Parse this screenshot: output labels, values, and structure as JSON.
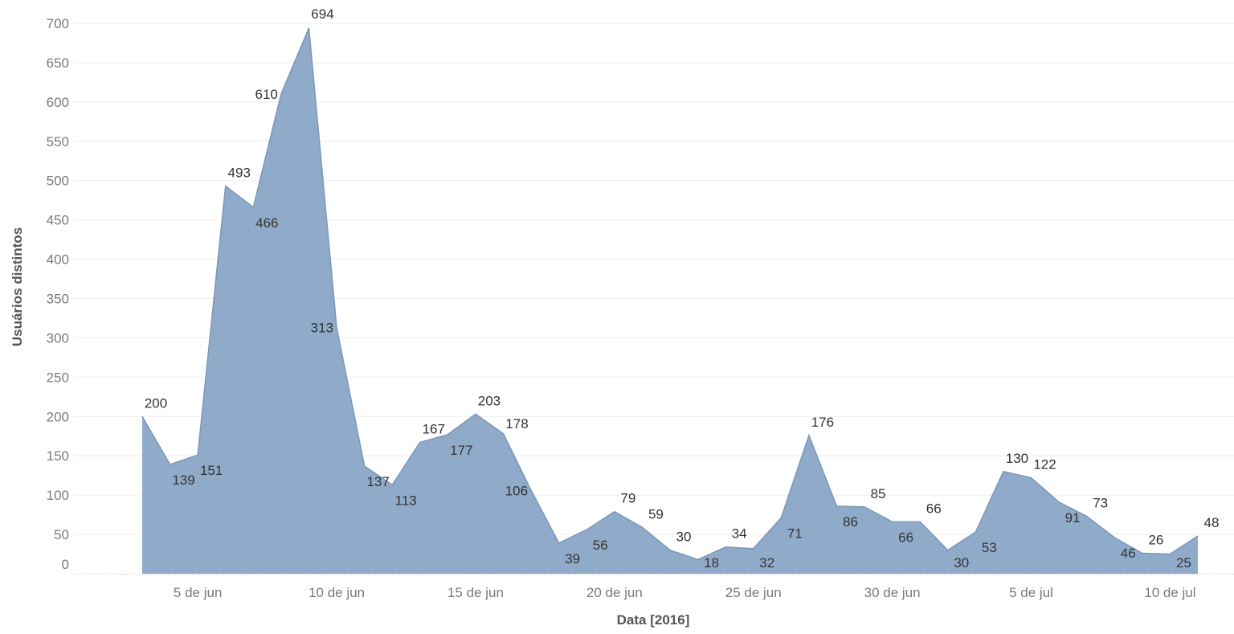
{
  "chart_data": {
    "type": "area",
    "xlabel": "Data [2016]",
    "ylabel": "Usuários distintos",
    "ylim": [
      0,
      700
    ],
    "yticks": [
      0,
      50,
      100,
      150,
      200,
      250,
      300,
      350,
      400,
      450,
      500,
      550,
      600,
      650,
      700
    ],
    "x_start": "2016-06-03",
    "x_end": "2016-07-11",
    "xticks": [
      {
        "date": "2016-06-05",
        "label": "5 de jun"
      },
      {
        "date": "2016-06-10",
        "label": "10 de jun"
      },
      {
        "date": "2016-06-15",
        "label": "15 de jun"
      },
      {
        "date": "2016-06-20",
        "label": "20 de jun"
      },
      {
        "date": "2016-06-25",
        "label": "25 de jun"
      },
      {
        "date": "2016-06-30",
        "label": "30 de jun"
      },
      {
        "date": "2016-07-05",
        "label": "5 de jul"
      },
      {
        "date": "2016-07-10",
        "label": "10 de jul"
      }
    ],
    "grid": true,
    "fill_color": "#8aa6c6",
    "line_color": "#7a98bb",
    "points": [
      {
        "date": "2016-06-03",
        "value": 200,
        "label": "200",
        "label_pos": "above"
      },
      {
        "date": "2016-06-04",
        "value": 139,
        "label": "139",
        "label_pos": "below"
      },
      {
        "date": "2016-06-05",
        "value": 151,
        "label": "151",
        "label_pos": "below"
      },
      {
        "date": "2016-06-06",
        "value": 493,
        "label": "493",
        "label_pos": "above"
      },
      {
        "date": "2016-06-07",
        "value": 466,
        "label": "466",
        "label_pos": "below"
      },
      {
        "date": "2016-06-08",
        "value": 610,
        "label": "610",
        "label_pos": "left"
      },
      {
        "date": "2016-06-09",
        "value": 694,
        "label": "694",
        "label_pos": "above"
      },
      {
        "date": "2016-06-10",
        "value": 313,
        "label": "313",
        "label_pos": "left"
      },
      {
        "date": "2016-06-11",
        "value": 137,
        "label": "137",
        "label_pos": "below"
      },
      {
        "date": "2016-06-12",
        "value": 113,
        "label": "113",
        "label_pos": "below"
      },
      {
        "date": "2016-06-13",
        "value": 167,
        "label": "167",
        "label_pos": "above"
      },
      {
        "date": "2016-06-14",
        "value": 177,
        "label": "177",
        "label_pos": "below"
      },
      {
        "date": "2016-06-15",
        "value": 203,
        "label": "203",
        "label_pos": "above"
      },
      {
        "date": "2016-06-16",
        "value": 178,
        "label": "178",
        "label_pos": "right"
      },
      {
        "date": "2016-06-17",
        "value": 106,
        "label": "106",
        "label_pos": "left"
      },
      {
        "date": "2016-06-18",
        "value": 39,
        "label": "39",
        "label_pos": "below"
      },
      {
        "date": "2016-06-19",
        "value": 56,
        "label": "56",
        "label_pos": "below"
      },
      {
        "date": "2016-06-20",
        "value": 79,
        "label": "79",
        "label_pos": "above"
      },
      {
        "date": "2016-06-21",
        "value": 59,
        "label": "59",
        "label_pos": "above"
      },
      {
        "date": "2016-06-22",
        "value": 30,
        "label": "30",
        "label_pos": "above"
      },
      {
        "date": "2016-06-23",
        "value": 18,
        "label": "18",
        "label_pos": "below"
      },
      {
        "date": "2016-06-24",
        "value": 34,
        "label": "34",
        "label_pos": "above"
      },
      {
        "date": "2016-06-25",
        "value": 32,
        "label": "32",
        "label_pos": "below"
      },
      {
        "date": "2016-06-26",
        "value": 71,
        "label": "71",
        "label_pos": "below"
      },
      {
        "date": "2016-06-27",
        "value": 176,
        "label": "176",
        "label_pos": "above"
      },
      {
        "date": "2016-06-28",
        "value": 86,
        "label": "86",
        "label_pos": "below"
      },
      {
        "date": "2016-06-29",
        "value": 85,
        "label": "85",
        "label_pos": "above"
      },
      {
        "date": "2016-06-30",
        "value": 66,
        "label": "66",
        "label_pos": "below"
      },
      {
        "date": "2016-07-01",
        "value": 66,
        "label": "66",
        "label_pos": "above"
      },
      {
        "date": "2016-07-02",
        "value": 30,
        "label": "30",
        "label_pos": "below"
      },
      {
        "date": "2016-07-03",
        "value": 53,
        "label": "53",
        "label_pos": "below"
      },
      {
        "date": "2016-07-04",
        "value": 130,
        "label": "130",
        "label_pos": "above"
      },
      {
        "date": "2016-07-05",
        "value": 122,
        "label": "122",
        "label_pos": "above"
      },
      {
        "date": "2016-07-06",
        "value": 91,
        "label": "91",
        "label_pos": "below"
      },
      {
        "date": "2016-07-07",
        "value": 73,
        "label": "73",
        "label_pos": "above"
      },
      {
        "date": "2016-07-08",
        "value": 46,
        "label": "46",
        "label_pos": "below"
      },
      {
        "date": "2016-07-09",
        "value": 26,
        "label": "26",
        "label_pos": "above"
      },
      {
        "date": "2016-07-10",
        "value": 25,
        "label": "25",
        "label_pos": "below"
      },
      {
        "date": "2016-07-11",
        "value": 48,
        "label": "48",
        "label_pos": "above"
      }
    ]
  }
}
